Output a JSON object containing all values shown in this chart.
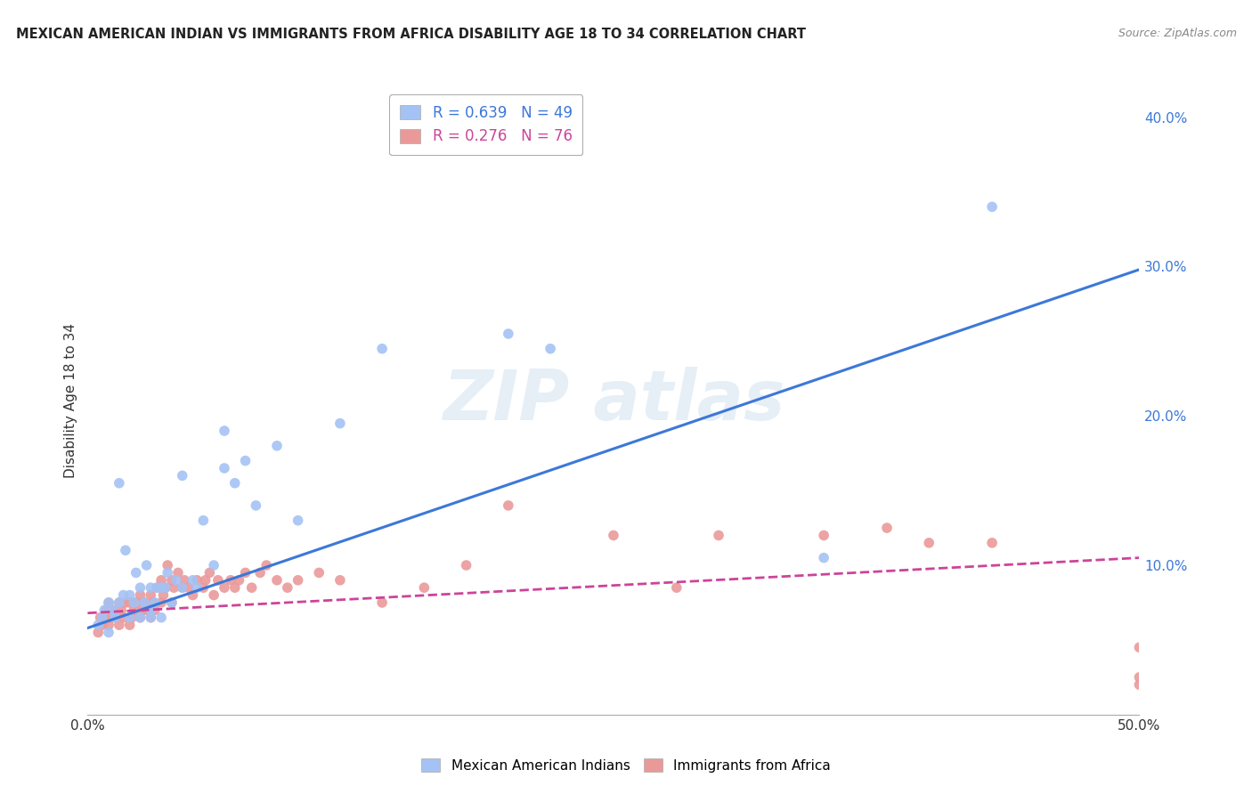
{
  "title": "MEXICAN AMERICAN INDIAN VS IMMIGRANTS FROM AFRICA DISABILITY AGE 18 TO 34 CORRELATION CHART",
  "source": "Source: ZipAtlas.com",
  "ylabel": "Disability Age 18 to 34",
  "xlim": [
    0.0,
    0.5
  ],
  "ylim": [
    0.0,
    0.42
  ],
  "blue_R": 0.639,
  "blue_N": 49,
  "pink_R": 0.276,
  "pink_N": 76,
  "blue_color": "#a4c2f4",
  "pink_color": "#ea9999",
  "blue_line_color": "#3c78d8",
  "pink_line_color": "#cc4499",
  "grid_color": "#cccccc",
  "legend_label_blue": "Mexican American Indians",
  "legend_label_pink": "Immigrants from Africa",
  "blue_line_x0": 0.0,
  "blue_line_y0": 0.058,
  "blue_line_x1": 0.5,
  "blue_line_y1": 0.298,
  "pink_line_x0": 0.0,
  "pink_line_y0": 0.068,
  "pink_line_x1": 0.5,
  "pink_line_y1": 0.105,
  "blue_scatter_x": [
    0.005,
    0.007,
    0.008,
    0.01,
    0.01,
    0.012,
    0.013,
    0.015,
    0.015,
    0.017,
    0.018,
    0.02,
    0.02,
    0.022,
    0.023,
    0.025,
    0.025,
    0.027,
    0.028,
    0.03,
    0.03,
    0.03,
    0.032,
    0.033,
    0.035,
    0.035,
    0.037,
    0.038,
    0.04,
    0.042,
    0.045,
    0.045,
    0.05,
    0.052,
    0.055,
    0.06,
    0.065,
    0.065,
    0.07,
    0.075,
    0.08,
    0.09,
    0.1,
    0.12,
    0.14,
    0.2,
    0.22,
    0.35,
    0.43
  ],
  "blue_scatter_y": [
    0.06,
    0.065,
    0.07,
    0.055,
    0.075,
    0.07,
    0.065,
    0.075,
    0.155,
    0.08,
    0.11,
    0.065,
    0.08,
    0.075,
    0.095,
    0.065,
    0.085,
    0.075,
    0.1,
    0.065,
    0.07,
    0.085,
    0.075,
    0.085,
    0.065,
    0.085,
    0.085,
    0.095,
    0.075,
    0.09,
    0.085,
    0.16,
    0.09,
    0.085,
    0.13,
    0.1,
    0.165,
    0.19,
    0.155,
    0.17,
    0.14,
    0.18,
    0.13,
    0.195,
    0.245,
    0.255,
    0.245,
    0.105,
    0.34
  ],
  "pink_scatter_x": [
    0.005,
    0.006,
    0.007,
    0.008,
    0.009,
    0.01,
    0.01,
    0.011,
    0.012,
    0.013,
    0.015,
    0.015,
    0.016,
    0.017,
    0.018,
    0.02,
    0.02,
    0.021,
    0.022,
    0.023,
    0.025,
    0.025,
    0.026,
    0.027,
    0.028,
    0.03,
    0.03,
    0.031,
    0.032,
    0.033,
    0.035,
    0.035,
    0.036,
    0.037,
    0.038,
    0.04,
    0.04,
    0.041,
    0.043,
    0.045,
    0.046,
    0.048,
    0.05,
    0.052,
    0.055,
    0.056,
    0.058,
    0.06,
    0.062,
    0.065,
    0.068,
    0.07,
    0.072,
    0.075,
    0.078,
    0.082,
    0.085,
    0.09,
    0.095,
    0.1,
    0.11,
    0.12,
    0.14,
    0.16,
    0.18,
    0.2,
    0.25,
    0.28,
    0.3,
    0.35,
    0.38,
    0.4,
    0.43,
    0.5,
    0.5,
    0.5
  ],
  "pink_scatter_y": [
    0.055,
    0.065,
    0.06,
    0.065,
    0.07,
    0.06,
    0.075,
    0.065,
    0.07,
    0.065,
    0.06,
    0.075,
    0.07,
    0.065,
    0.075,
    0.06,
    0.075,
    0.065,
    0.07,
    0.075,
    0.065,
    0.08,
    0.07,
    0.075,
    0.07,
    0.065,
    0.08,
    0.075,
    0.07,
    0.085,
    0.075,
    0.09,
    0.08,
    0.085,
    0.1,
    0.075,
    0.09,
    0.085,
    0.095,
    0.085,
    0.09,
    0.085,
    0.08,
    0.09,
    0.085,
    0.09,
    0.095,
    0.08,
    0.09,
    0.085,
    0.09,
    0.085,
    0.09,
    0.095,
    0.085,
    0.095,
    0.1,
    0.09,
    0.085,
    0.09,
    0.095,
    0.09,
    0.075,
    0.085,
    0.1,
    0.14,
    0.12,
    0.085,
    0.12,
    0.12,
    0.125,
    0.115,
    0.115,
    0.025,
    0.045,
    0.02
  ]
}
